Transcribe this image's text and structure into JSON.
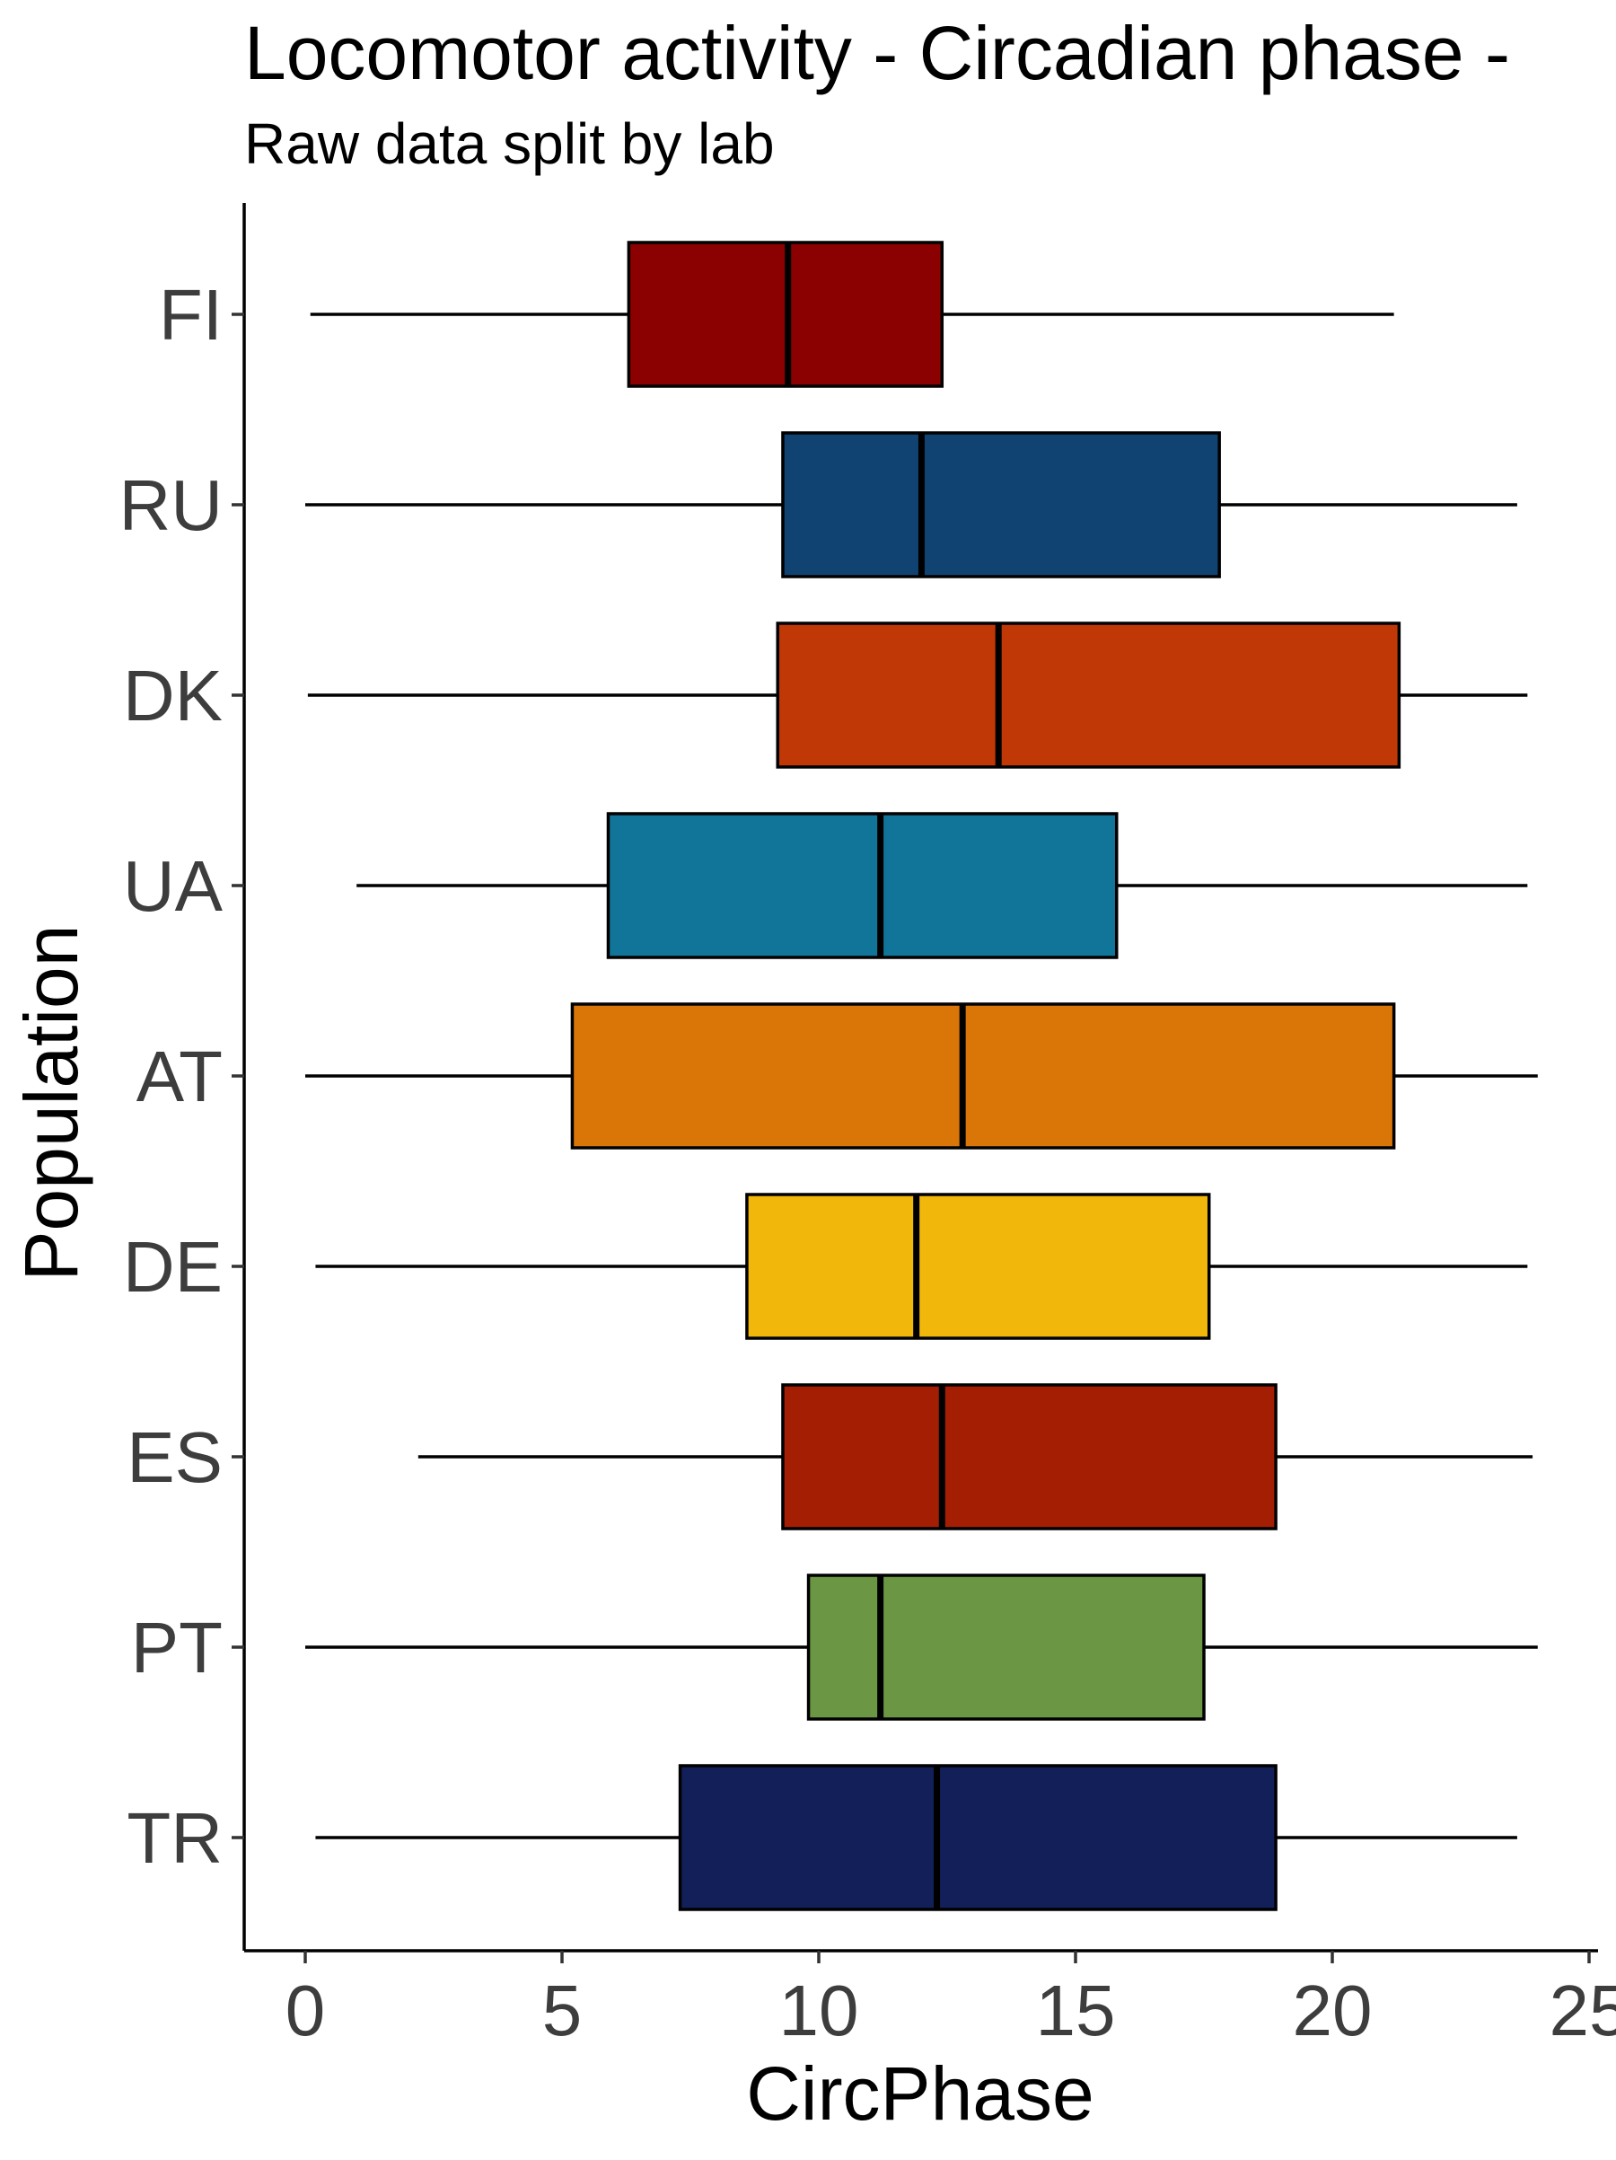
{
  "chart_data": {
    "type": "boxplot",
    "orientation": "horizontal",
    "title": "Locomotor activity - Circadian phase -",
    "subtitle": "Raw data split by lab",
    "xlabel": "CircPhase",
    "ylabel": "Population",
    "xlim": [
      -1.2,
      25
    ],
    "xticks": [
      0,
      5,
      10,
      15,
      20,
      25
    ],
    "grid": false,
    "legend": "none",
    "categories": [
      "FI",
      "RU",
      "DK",
      "UA",
      "AT",
      "DE",
      "ES",
      "PT",
      "TR"
    ],
    "boxes": [
      {
        "label": "FI",
        "min": 0.1,
        "q1": 6.3,
        "median": 9.4,
        "q3": 12.4,
        "max": 21.2,
        "color": "#8b0000"
      },
      {
        "label": "RU",
        "min": 0.0,
        "q1": 9.3,
        "median": 12.0,
        "q3": 17.8,
        "max": 23.6,
        "color": "#114372"
      },
      {
        "label": "DK",
        "min": 0.05,
        "q1": 9.2,
        "median": 13.5,
        "q3": 21.3,
        "max": 23.8,
        "color": "#c03805"
      },
      {
        "label": "UA",
        "min": 1.0,
        "q1": 5.9,
        "median": 11.2,
        "q3": 15.8,
        "max": 23.8,
        "color": "#117499"
      },
      {
        "label": "AT",
        "min": 0.0,
        "q1": 5.2,
        "median": 12.8,
        "q3": 21.2,
        "max": 24.0,
        "color": "#da7507"
      },
      {
        "label": "DE",
        "min": 0.2,
        "q1": 8.6,
        "median": 11.9,
        "q3": 17.6,
        "max": 23.8,
        "color": "#f2b70b"
      },
      {
        "label": "ES",
        "min": 2.2,
        "q1": 9.3,
        "median": 12.4,
        "q3": 18.9,
        "max": 23.9,
        "color": "#a41e04"
      },
      {
        "label": "PT",
        "min": 0.0,
        "q1": 9.8,
        "median": 11.2,
        "q3": 17.5,
        "max": 24.0,
        "color": "#6b9643"
      },
      {
        "label": "TR",
        "min": 0.2,
        "q1": 7.3,
        "median": 12.3,
        "q3": 18.9,
        "max": 23.6,
        "color": "#121f58"
      }
    ]
  }
}
